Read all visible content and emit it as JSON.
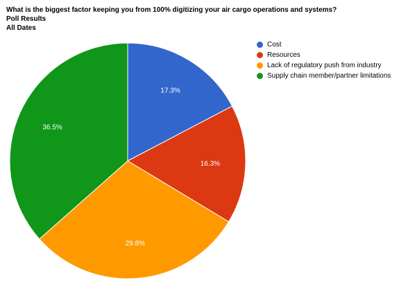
{
  "chart_data": {
    "type": "pie",
    "title": "What is the biggest factor keeping you from 100% digitizing your air cargo operations and systems?",
    "subtitle": "Poll Results",
    "subtitle2": "All Dates",
    "legend_position": "right",
    "slices": [
      {
        "name": "Cost",
        "value": 17.3,
        "label": "17.3%",
        "color": "#3366cc"
      },
      {
        "name": "Resources",
        "value": 16.3,
        "label": "16.3%",
        "color": "#dc3912"
      },
      {
        "name": "Lack of regulatory push from industry",
        "value": 29.8,
        "label": "29.8%",
        "color": "#ff9900"
      },
      {
        "name": "Supply chain member/partner limitations",
        "value": 36.5,
        "label": "36.5%",
        "color": "#109618"
      }
    ]
  }
}
